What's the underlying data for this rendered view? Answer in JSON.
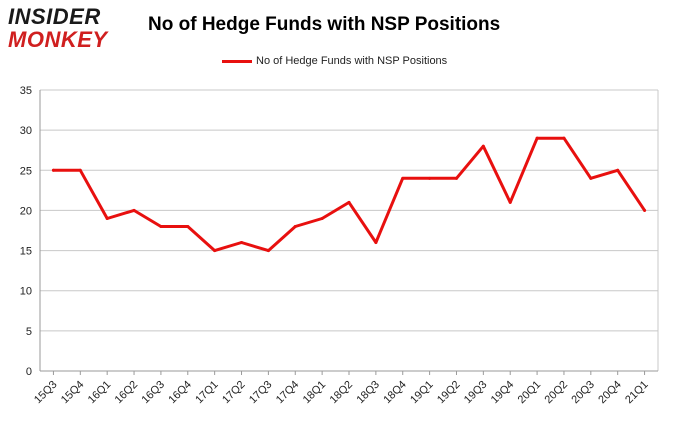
{
  "logo": {
    "line1": "INSIDER",
    "line2": "MONKEY"
  },
  "chart_data": {
    "type": "line",
    "title": "No of Hedge Funds with NSP Positions",
    "xlabel": "",
    "ylabel": "",
    "categories": [
      "15Q3",
      "15Q4",
      "16Q1",
      "16Q2",
      "16Q3",
      "16Q4",
      "17Q1",
      "17Q2",
      "17Q3",
      "17Q4",
      "18Q1",
      "18Q2",
      "18Q3",
      "18Q4",
      "19Q1",
      "19Q2",
      "19Q3",
      "19Q4",
      "20Q1",
      "20Q2",
      "20Q3",
      "20Q4",
      "21Q1"
    ],
    "series": [
      {
        "name": "No of Hedge Funds with NSP Positions",
        "values": [
          25,
          25,
          19,
          20,
          18,
          18,
          15,
          16,
          15,
          18,
          19,
          21,
          16,
          24,
          24,
          24,
          28,
          21,
          29,
          29,
          24,
          25,
          20
        ]
      }
    ],
    "ylim": [
      0,
      35
    ],
    "yticks": [
      0,
      5,
      10,
      15,
      20,
      25,
      30,
      35
    ],
    "grid": true,
    "legend": "top-center",
    "colors": {
      "line": "#e8100f",
      "grid": "#c8c8c8"
    }
  }
}
